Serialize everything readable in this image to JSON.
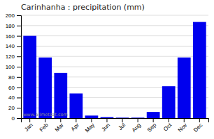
{
  "chart_data": {
    "type": "bar",
    "title": "Carinhanha : precipitation (mm)",
    "categories": [
      "Jan",
      "Feb",
      "Mar",
      "Apr",
      "May",
      "Jun",
      "Jul",
      "Aug",
      "Sep",
      "Oct",
      "Nov",
      "Dec"
    ],
    "values": [
      160,
      118,
      88,
      48,
      5,
      2,
      1,
      1,
      12,
      62,
      118,
      187
    ],
    "color": "#0000EE",
    "ylim": [
      0,
      200
    ],
    "yticks": [
      0,
      20,
      40,
      60,
      80,
      100,
      120,
      140,
      160,
      180,
      200
    ],
    "grid": true,
    "annotations": [
      "www.allmetsat.com"
    ]
  }
}
